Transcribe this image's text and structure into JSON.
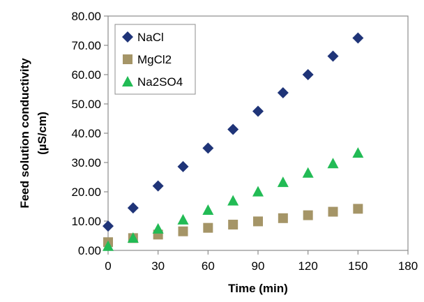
{
  "chart_data": {
    "type": "scatter",
    "xlabel": "Time (min)",
    "ylabel": [
      "Feed solution conductivity",
      "(µS/cm)"
    ],
    "xlim": [
      0,
      180
    ],
    "ylim": [
      0,
      80
    ],
    "x_ticks": [
      "0",
      "30",
      "60",
      "90",
      "120",
      "150",
      "180"
    ],
    "y_ticks": [
      "0.00",
      "10.00",
      "20.00",
      "30.00",
      "40.00",
      "50.00",
      "60.00",
      "70.00",
      "80.00"
    ],
    "grid": false,
    "legend_position": "top-left",
    "x": [
      0,
      15,
      30,
      45,
      60,
      75,
      90,
      105,
      120,
      135,
      150
    ],
    "series": [
      {
        "name": "NaCl",
        "marker": "diamond",
        "color": "#1f3478",
        "values": [
          8.3,
          14.5,
          22.0,
          28.6,
          34.9,
          41.3,
          47.5,
          53.8,
          60.0,
          66.3,
          72.5
        ]
      },
      {
        "name": "MgCl2",
        "marker": "square",
        "color": "#a59567",
        "values": [
          2.8,
          4.2,
          5.4,
          6.5,
          7.7,
          8.8,
          9.9,
          11.0,
          12.0,
          13.2,
          14.2
        ]
      },
      {
        "name": "Na2SO4",
        "marker": "triangle",
        "color": "#22bb55",
        "values": [
          1.5,
          4.3,
          7.4,
          10.5,
          13.8,
          17.0,
          20.1,
          23.3,
          26.5,
          29.7,
          33.3
        ]
      }
    ]
  }
}
